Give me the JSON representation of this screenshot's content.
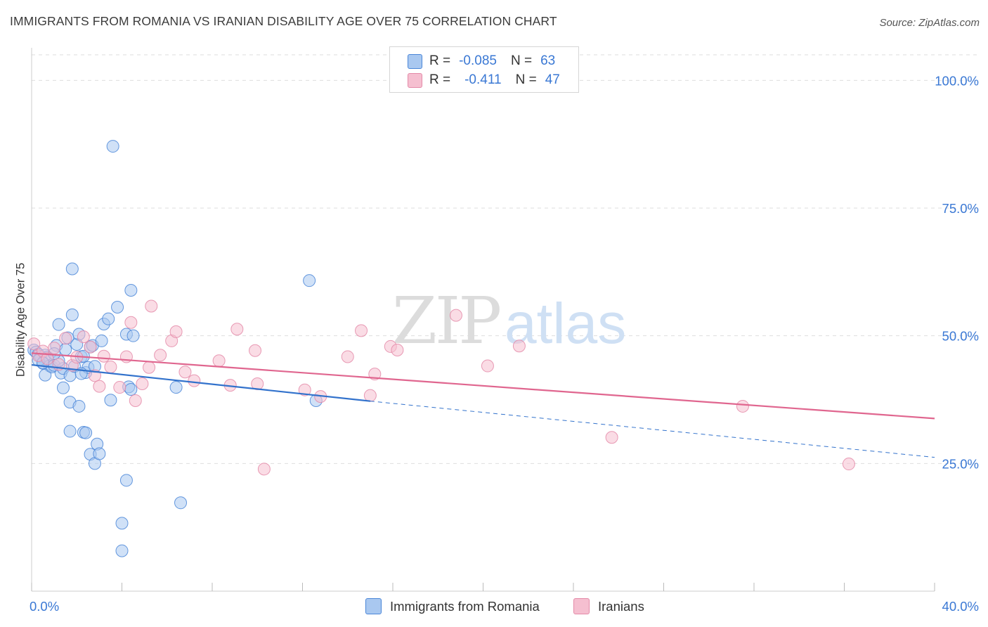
{
  "title": "IMMIGRANTS FROM ROMANIA VS IRANIAN DISABILITY AGE OVER 75 CORRELATION CHART",
  "source": "Source: ZipAtlas.com",
  "watermark": "ZIPatlas",
  "colors": {
    "blue_fill": "#a9c8f0",
    "blue_stroke": "#4a86d8",
    "blue_line": "#3272cc",
    "pink_fill": "#f5bfd0",
    "pink_stroke": "#e48aa8",
    "pink_line": "#e0668f",
    "tick_text": "#3a78d4",
    "grid": "#dedede"
  },
  "legend_top": {
    "rows": [
      {
        "r_label": "R =",
        "r_value": "-0.085",
        "n_label": "N =",
        "n_value": "63",
        "series": "blue"
      },
      {
        "r_label": "R =",
        "r_value": "-0.411",
        "n_label": "N =",
        "n_value": "47",
        "series": "pink"
      }
    ]
  },
  "legend_bottom": [
    {
      "label": "Immigrants from Romania",
      "series": "blue"
    },
    {
      "label": "Iranians",
      "series": "pink"
    }
  ],
  "chart_data": {
    "type": "scatter",
    "title": "IMMIGRANTS FROM ROMANIA VS IRANIAN DISABILITY AGE OVER 75 CORRELATION CHART",
    "xlabel": "",
    "ylabel": "Disability Age Over 75",
    "xlim": [
      0,
      40
    ],
    "ylim": [
      0,
      105
    ],
    "x_tick_labels": [
      {
        "value": 0,
        "label": "0.0%"
      },
      {
        "value": 40,
        "label": "40.0%"
      }
    ],
    "y_tick_labels": [
      {
        "value": 25,
        "label": "25.0%"
      },
      {
        "value": 50,
        "label": "50.0%"
      },
      {
        "value": 75,
        "label": "75.0%"
      },
      {
        "value": 100,
        "label": "100.0%"
      }
    ],
    "grid": true,
    "legend_position": "top-center",
    "series": [
      {
        "name": "Immigrants from Romania",
        "color": "#4a86d8",
        "r": -0.085,
        "n": 63,
        "trend": {
          "x": [
            0,
            15
          ],
          "y": [
            44.3,
            37.2
          ],
          "dashed_to": [
            40,
            26.2
          ]
        },
        "points": [
          [
            0.1,
            47.2
          ],
          [
            0.2,
            46.8
          ],
          [
            0.3,
            46.4
          ],
          [
            0.4,
            45.9
          ],
          [
            0.5,
            44.6
          ],
          [
            0.6,
            46.2
          ],
          [
            0.7,
            45.8
          ],
          [
            0.8,
            44.1
          ],
          [
            0.6,
            42.3
          ],
          [
            0.9,
            43.9
          ],
          [
            1.0,
            44.2
          ],
          [
            1.1,
            48.1
          ],
          [
            1.2,
            52.2
          ],
          [
            1.3,
            42.7
          ],
          [
            1.4,
            43.6
          ],
          [
            1.5,
            47.3
          ],
          [
            1.6,
            49.6
          ],
          [
            1.7,
            42.2
          ],
          [
            1.8,
            54.1
          ],
          [
            1.9,
            44.0
          ],
          [
            2.0,
            48.3
          ],
          [
            2.1,
            50.3
          ],
          [
            2.2,
            45.9
          ],
          [
            2.3,
            46.0
          ],
          [
            2.4,
            42.8
          ],
          [
            2.5,
            43.8
          ],
          [
            2.6,
            47.8
          ],
          [
            2.7,
            48.1
          ],
          [
            2.2,
            42.6
          ],
          [
            1.4,
            39.8
          ],
          [
            1.7,
            37.0
          ],
          [
            2.1,
            36.2
          ],
          [
            1.7,
            31.3
          ],
          [
            2.3,
            31.1
          ],
          [
            2.4,
            31.0
          ],
          [
            2.9,
            28.8
          ],
          [
            2.6,
            26.8
          ],
          [
            2.8,
            25.0
          ],
          [
            3.0,
            26.9
          ],
          [
            3.2,
            52.3
          ],
          [
            3.4,
            53.3
          ],
          [
            3.6,
            87.1
          ],
          [
            3.8,
            55.6
          ],
          [
            4.2,
            50.3
          ],
          [
            4.5,
            50.0
          ],
          [
            4.4,
            58.9
          ],
          [
            3.5,
            37.4
          ],
          [
            4.3,
            40.0
          ],
          [
            4.4,
            39.5
          ],
          [
            3.1,
            49.0
          ],
          [
            1.8,
            63.1
          ],
          [
            6.4,
            39.9
          ],
          [
            6.6,
            17.3
          ],
          [
            4.2,
            21.7
          ],
          [
            4.0,
            13.3
          ],
          [
            4.0,
            7.9
          ],
          [
            12.3,
            60.8
          ],
          [
            12.6,
            37.3
          ],
          [
            0.3,
            45.2
          ],
          [
            1.2,
            45.1
          ],
          [
            2.8,
            44.0
          ],
          [
            0.5,
            44.7
          ],
          [
            1.0,
            46.5
          ]
        ]
      },
      {
        "name": "Iranians",
        "color": "#e48aa8",
        "r": -0.411,
        "n": 47,
        "trend": {
          "x": [
            0,
            40
          ],
          "y": [
            46.6,
            33.8
          ]
        },
        "points": [
          [
            0.1,
            48.4
          ],
          [
            0.3,
            46.1
          ],
          [
            0.5,
            47.0
          ],
          [
            0.7,
            45.5
          ],
          [
            1.0,
            47.6
          ],
          [
            1.2,
            44.4
          ],
          [
            1.5,
            49.5
          ],
          [
            1.8,
            44.2
          ],
          [
            2.0,
            45.8
          ],
          [
            2.3,
            49.8
          ],
          [
            2.6,
            47.8
          ],
          [
            2.8,
            42.2
          ],
          [
            3.0,
            40.1
          ],
          [
            3.2,
            46.0
          ],
          [
            3.5,
            43.9
          ],
          [
            3.9,
            39.9
          ],
          [
            4.2,
            45.9
          ],
          [
            4.4,
            52.6
          ],
          [
            4.6,
            37.3
          ],
          [
            4.9,
            40.6
          ],
          [
            5.2,
            43.8
          ],
          [
            5.3,
            55.8
          ],
          [
            5.7,
            46.2
          ],
          [
            6.2,
            49.0
          ],
          [
            6.4,
            50.8
          ],
          [
            6.8,
            42.9
          ],
          [
            7.2,
            41.2
          ],
          [
            8.3,
            45.1
          ],
          [
            8.8,
            40.3
          ],
          [
            9.1,
            51.3
          ],
          [
            9.9,
            47.1
          ],
          [
            10.0,
            40.6
          ],
          [
            10.3,
            23.9
          ],
          [
            12.1,
            39.4
          ],
          [
            12.8,
            38.1
          ],
          [
            14.0,
            45.9
          ],
          [
            14.6,
            51.0
          ],
          [
            15.0,
            38.3
          ],
          [
            15.2,
            42.5
          ],
          [
            15.9,
            47.9
          ],
          [
            16.2,
            47.2
          ],
          [
            18.8,
            54.0
          ],
          [
            20.2,
            44.1
          ],
          [
            21.6,
            48.0
          ],
          [
            25.7,
            30.1
          ],
          [
            31.5,
            36.2
          ],
          [
            36.2,
            24.9
          ]
        ]
      }
    ]
  }
}
